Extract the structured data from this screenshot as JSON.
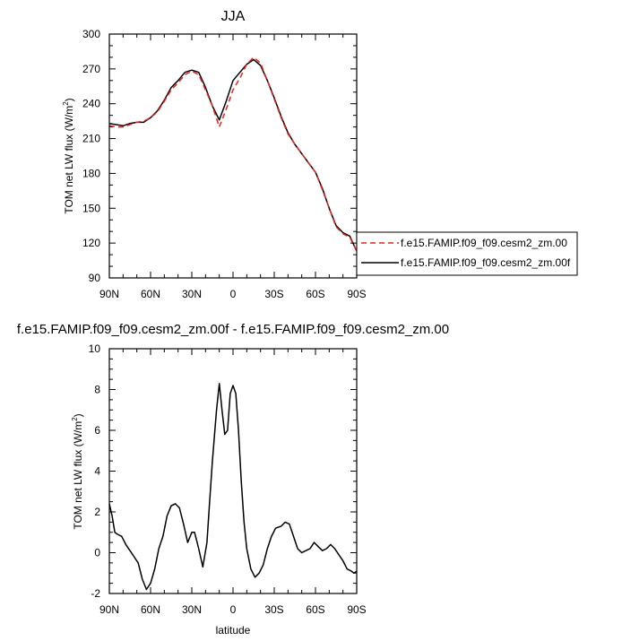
{
  "chart_data": [
    {
      "type": "line",
      "title": "JJA",
      "xlabel": "",
      "ylabel": "TOM net LW flux (W/m",
      "ylabel_sup": "2",
      "ylabel_close": ")",
      "xlim": [
        90,
        -90
      ],
      "ylim": [
        90,
        300
      ],
      "xticks": [
        90,
        60,
        30,
        0,
        -30,
        -60,
        -90
      ],
      "xtick_labels": [
        "90N",
        "60N",
        "30N",
        "0",
        "30S",
        "60S",
        "90S"
      ],
      "yticks": [
        90,
        120,
        150,
        180,
        210,
        240,
        270,
        300
      ],
      "ytick_labels": [
        "90",
        "120",
        "150",
        "180",
        "210",
        "240",
        "270",
        "300"
      ],
      "legend_position": "right",
      "series": [
        {
          "name": "f.e15.FAMIP.f09_f09.cesm2_zm.00",
          "color": "#e8231e",
          "dash": "dashed",
          "x": [
            90,
            85,
            80,
            75,
            70,
            65,
            60,
            55,
            50,
            45,
            40,
            35,
            30,
            25,
            20,
            15,
            10,
            5,
            0,
            -5,
            -10,
            -15,
            -20,
            -25,
            -30,
            -35,
            -40,
            -45,
            -50,
            -55,
            -60,
            -65,
            -70,
            -75,
            -80,
            -85,
            -90
          ],
          "y": [
            221,
            220,
            220,
            222,
            224,
            225,
            228,
            233,
            242,
            252,
            258,
            265,
            268,
            265,
            252,
            238,
            220,
            235,
            252,
            262,
            274,
            280,
            275,
            260,
            244,
            228,
            214,
            205,
            197,
            189,
            181,
            166,
            150,
            134,
            128,
            125,
            113
          ]
        },
        {
          "name": "f.e15.FAMIP.f09_f09.cesm2_zm.00f",
          "color": "#000000",
          "dash": "solid",
          "x": [
            90,
            85,
            80,
            75,
            70,
            65,
            60,
            55,
            50,
            45,
            40,
            35,
            30,
            25,
            20,
            15,
            10,
            5,
            0,
            -5,
            -10,
            -15,
            -20,
            -25,
            -30,
            -35,
            -40,
            -45,
            -50,
            -55,
            -60,
            -65,
            -70,
            -75,
            -80,
            -85,
            -90
          ],
          "y": [
            223,
            222,
            221,
            223,
            224,
            224,
            228,
            234,
            243,
            254,
            260,
            267,
            269,
            267,
            254,
            238,
            226,
            242,
            260,
            267,
            274,
            278,
            273,
            260,
            245,
            229,
            215,
            205,
            197,
            189,
            181,
            167,
            150,
            135,
            129,
            126,
            113
          ]
        }
      ]
    },
    {
      "type": "line",
      "title": "f.e15.FAMIP.f09_f09.cesm2_zm.00f - f.e15.FAMIP.f09_f09.cesm2_zm.00",
      "xlabel": "latitude",
      "ylabel": "TOM net LW flux (W/m",
      "ylabel_sup": "2",
      "ylabel_close": ")",
      "xlim": [
        90,
        -90
      ],
      "ylim": [
        -2,
        10
      ],
      "xticks": [
        90,
        60,
        30,
        0,
        -30,
        -60,
        -90
      ],
      "xtick_labels": [
        "90N",
        "60N",
        "30N",
        "0",
        "30S",
        "60S",
        "90S"
      ],
      "yticks": [
        -2,
        0,
        2,
        4,
        6,
        8,
        10
      ],
      "ytick_labels": [
        "-2",
        "0",
        "2",
        "4",
        "6",
        "8",
        "10"
      ],
      "series": [
        {
          "color": "#000000",
          "x": [
            90,
            88,
            86,
            84,
            81,
            78,
            75,
            72,
            69,
            66,
            63,
            60,
            57,
            54,
            51,
            48,
            45,
            42,
            39,
            36,
            33,
            30,
            28,
            25,
            22,
            19,
            17,
            15,
            12,
            10,
            8,
            6,
            4,
            2,
            0,
            -2,
            -4,
            -6,
            -8,
            -10,
            -13,
            -16,
            -19,
            -22,
            -25,
            -28,
            -31,
            -35,
            -38,
            -41,
            -44,
            -47,
            -50,
            -53,
            -56,
            -59,
            -62,
            -65,
            -68,
            -71,
            -74,
            -77,
            -80,
            -83,
            -86,
            -88,
            -90
          ],
          "y": [
            2.4,
            1.8,
            1.0,
            0.9,
            0.8,
            0.4,
            0.1,
            -0.2,
            -0.5,
            -1.3,
            -1.8,
            -1.5,
            -0.8,
            0.2,
            0.8,
            1.8,
            2.3,
            2.4,
            2.2,
            1.4,
            0.5,
            1.0,
            1.0,
            0.2,
            -0.7,
            0.5,
            2.5,
            4.5,
            7.0,
            8.3,
            7.0,
            5.8,
            6.0,
            7.8,
            8.2,
            7.8,
            6.0,
            3.5,
            1.5,
            0.2,
            -0.8,
            -1.2,
            -1.0,
            -0.6,
            0.2,
            0.8,
            1.2,
            1.3,
            1.5,
            1.4,
            0.8,
            0.2,
            0.0,
            0.1,
            0.2,
            0.5,
            0.3,
            0.1,
            0.2,
            0.4,
            0.2,
            -0.1,
            -0.4,
            -0.8,
            -0.9,
            -1.0,
            -0.9
          ]
        }
      ]
    }
  ]
}
